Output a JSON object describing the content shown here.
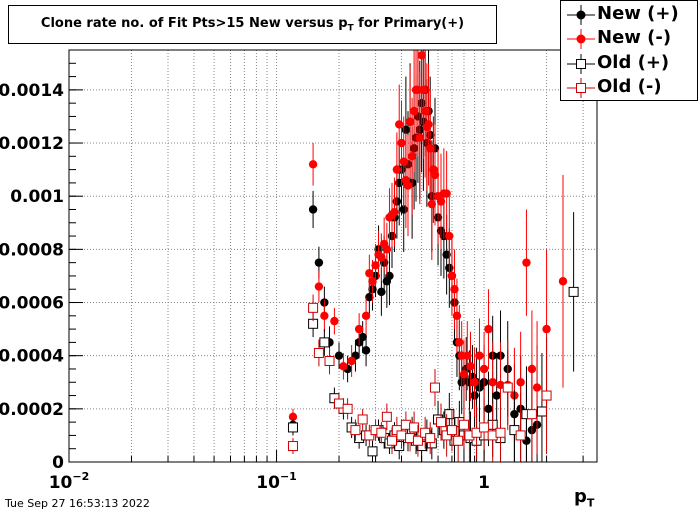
{
  "title": {
    "main": "Clone rate no. of Fit Pts>15 New versus p",
    "sub": "T",
    "tail": " for Primary(+)"
  },
  "timestamp": "Tue Sep 27 16:53:13 2022",
  "legend": [
    {
      "label": "New (+)",
      "color": "#000000",
      "marker": "filled-circle"
    },
    {
      "label": "New (-)",
      "color": "#ff0000",
      "marker": "filled-circle"
    },
    {
      "label": "Old (+)",
      "color": "#000000",
      "marker": "open-square"
    },
    {
      "label": "Old (-)",
      "color": "#cc0000",
      "marker": "open-square"
    }
  ],
  "xaxis": {
    "title_main": "p",
    "title_sub": "T"
  },
  "chart_data": {
    "type": "scatter",
    "x_scale": "log",
    "xlim": [
      0.01,
      3.5
    ],
    "ylim": [
      0,
      0.00155
    ],
    "grid": true,
    "x_ticks": [
      {
        "value": 0.01,
        "base": "10",
        "exp": "−2"
      },
      {
        "value": 0.1,
        "base": "10",
        "exp": "−1"
      },
      {
        "value": 1,
        "base": "1",
        "exp": ""
      }
    ],
    "y_ticks": [
      {
        "value": 0,
        "label": "0"
      },
      {
        "value": 0.0002,
        "label": "0.0002"
      },
      {
        "value": 0.0004,
        "label": "0.0004"
      },
      {
        "value": 0.0006,
        "label": "0.0006"
      },
      {
        "value": 0.0008,
        "label": "0.0008"
      },
      {
        "value": 0.001,
        "label": "0.001"
      },
      {
        "value": 0.0012,
        "label": "0.0012"
      },
      {
        "value": 0.0014,
        "label": "0.0014"
      }
    ],
    "series": [
      {
        "name": "New (+)",
        "color": "#000000",
        "marker": "filled-circle",
        "points": [
          [
            0.15,
            0.00095,
            7e-05
          ],
          [
            0.16,
            0.00075,
            6e-05
          ],
          [
            0.17,
            0.0006,
            6e-05
          ],
          [
            0.18,
            0.00045,
            6e-05
          ],
          [
            0.2,
            0.0004,
            5e-05
          ],
          [
            0.22,
            0.00035,
            5e-05
          ],
          [
            0.24,
            0.0004,
            6e-05
          ],
          [
            0.25,
            0.00045,
            6e-05
          ],
          [
            0.26,
            0.00047,
            6e-05
          ],
          [
            0.27,
            0.00042,
            6e-05
          ],
          [
            0.28,
            0.00062,
            7e-05
          ],
          [
            0.29,
            0.00065,
            8e-05
          ],
          [
            0.3,
            0.0007,
            8e-05
          ],
          [
            0.31,
            0.0008,
            9e-05
          ],
          [
            0.32,
            0.00064,
            9e-05
          ],
          [
            0.33,
            0.00075,
            0.0001
          ],
          [
            0.34,
            0.00068,
            0.0001
          ],
          [
            0.35,
            0.0007,
            0.00011
          ],
          [
            0.36,
            0.00085,
            0.00012
          ],
          [
            0.37,
            0.00092,
            0.00013
          ],
          [
            0.38,
            0.00098,
            0.00014
          ],
          [
            0.39,
            0.00105,
            0.00016
          ],
          [
            0.4,
            0.0011,
            0.00017
          ],
          [
            0.41,
            0.00095,
            0.00016
          ],
          [
            0.42,
            0.00125,
            0.0002
          ],
          [
            0.43,
            0.00112,
            0.0002
          ],
          [
            0.44,
            0.00128,
            0.00022
          ],
          [
            0.45,
            0.00105,
            0.00021
          ],
          [
            0.46,
            0.00118,
            0.00023
          ],
          [
            0.47,
            0.00122,
            0.00024
          ],
          [
            0.48,
            0.0013,
            0.00025
          ],
          [
            0.49,
            0.00125,
            0.00026
          ],
          [
            0.5,
            0.00135,
            0.00026
          ],
          [
            0.51,
            0.00128,
            0.00026
          ],
          [
            0.52,
            0.0014,
            0.00025
          ],
          [
            0.53,
            0.0012,
            0.00024
          ],
          [
            0.54,
            0.00132,
            0.00023
          ],
          [
            0.55,
            0.00123,
            0.00022
          ],
          [
            0.56,
            0.001,
            0.00021
          ],
          [
            0.57,
            0.0011,
            0.0002
          ],
          [
            0.58,
            0.00118,
            0.00019
          ],
          [
            0.6,
            0.00092,
            0.00018
          ],
          [
            0.62,
            0.00087,
            0.00017
          ],
          [
            0.64,
            0.00085,
            0.00016
          ],
          [
            0.66,
            0.00078,
            0.00015
          ],
          [
            0.68,
            0.00073,
            0.00015
          ],
          [
            0.7,
            0.0007,
            0.00014
          ],
          [
            0.72,
            0.0006,
            0.00014
          ],
          [
            0.74,
            0.00045,
            0.00013
          ],
          [
            0.76,
            0.0004,
            0.00013
          ],
          [
            0.78,
            0.0003,
            0.00012
          ],
          [
            0.8,
            0.00032,
            0.00012
          ],
          [
            0.82,
            0.00035,
            0.00012
          ],
          [
            0.85,
            0.0003,
            0.00012
          ],
          [
            0.88,
            0.00032,
            0.00012
          ],
          [
            0.9,
            0.00025,
            0.00012
          ],
          [
            0.92,
            0.0003,
            0.00013
          ],
          [
            0.95,
            0.00028,
            0.00013
          ],
          [
            1.0,
            0.0003,
            0.00014
          ],
          [
            1.05,
            0.0002,
            0.00014
          ],
          [
            1.1,
            0.0004,
            0.00015
          ],
          [
            1.15,
            0.00025,
            0.00016
          ],
          [
            1.2,
            0.0004,
            0.00017
          ],
          [
            1.3,
            0.00035,
            0.00018
          ],
          [
            1.4,
            0.00018,
            0.00019
          ],
          [
            1.5,
            0.0002,
            0.0002
          ],
          [
            1.6,
            8e-05,
            0.00022
          ],
          [
            1.7,
            0.00012,
            0.00025
          ],
          [
            1.8,
            0.00014,
            0.0003
          ],
          [
            0.12,
            0.00014,
            3e-05
          ]
        ]
      },
      {
        "name": "New (-)",
        "color": "#ff0000",
        "marker": "filled-circle",
        "points": [
          [
            0.15,
            0.00112,
            8e-05
          ],
          [
            0.16,
            0.00066,
            6e-05
          ],
          [
            0.17,
            0.00055,
            6e-05
          ],
          [
            0.19,
            0.00053,
            5e-05
          ],
          [
            0.21,
            0.00036,
            5e-05
          ],
          [
            0.23,
            0.00038,
            6e-05
          ],
          [
            0.25,
            0.0005,
            6e-05
          ],
          [
            0.27,
            0.00055,
            7e-05
          ],
          [
            0.28,
            0.00071,
            7e-05
          ],
          [
            0.29,
            0.00068,
            8e-05
          ],
          [
            0.3,
            0.00074,
            8e-05
          ],
          [
            0.31,
            0.00078,
            9e-05
          ],
          [
            0.32,
            0.00077,
            9e-05
          ],
          [
            0.33,
            0.00082,
            0.0001
          ],
          [
            0.34,
            0.0008,
            0.0001
          ],
          [
            0.35,
            0.00092,
            0.00011
          ],
          [
            0.36,
            0.00093,
            0.00012
          ],
          [
            0.37,
            0.00094,
            0.00013
          ],
          [
            0.38,
            0.0011,
            0.00014
          ],
          [
            0.39,
            0.00127,
            0.00015
          ],
          [
            0.4,
            0.0012,
            0.00016
          ],
          [
            0.41,
            0.00113,
            0.00017
          ],
          [
            0.42,
            0.00106,
            0.00018
          ],
          [
            0.43,
            0.00104,
            0.00019
          ],
          [
            0.44,
            0.00128,
            0.00021
          ],
          [
            0.45,
            0.00115,
            0.00022
          ],
          [
            0.46,
            0.00132,
            0.00023
          ],
          [
            0.47,
            0.0014,
            0.00024
          ],
          [
            0.48,
            0.0014,
            0.00025
          ],
          [
            0.49,
            0.00122,
            0.00025
          ],
          [
            0.5,
            0.00153,
            0.00026
          ],
          [
            0.51,
            0.0014,
            0.00026
          ],
          [
            0.52,
            0.00132,
            0.00025
          ],
          [
            0.53,
            0.00126,
            0.00024
          ],
          [
            0.54,
            0.00127,
            0.00023
          ],
          [
            0.55,
            0.00118,
            0.00022
          ],
          [
            0.56,
            0.00097,
            0.00021
          ],
          [
            0.57,
            0.0011,
            0.0002
          ],
          [
            0.58,
            0.00108,
            0.00019
          ],
          [
            0.6,
            0.001,
            0.00018
          ],
          [
            0.62,
            0.00098,
            0.00018
          ],
          [
            0.64,
            0.00101,
            0.00017
          ],
          [
            0.66,
            0.00101,
            0.00016
          ],
          [
            0.68,
            0.00085,
            0.00016
          ],
          [
            0.7,
            0.0007,
            0.00015
          ],
          [
            0.72,
            0.00065,
            0.00015
          ],
          [
            0.74,
            0.00055,
            0.00014
          ],
          [
            0.76,
            0.00045,
            0.00014
          ],
          [
            0.78,
            0.0004,
            0.00013
          ],
          [
            0.8,
            0.00033,
            0.00013
          ],
          [
            0.83,
            0.0004,
            0.00013
          ],
          [
            0.86,
            0.00036,
            0.00013
          ],
          [
            0.9,
            0.0003,
            0.00013
          ],
          [
            0.95,
            0.0004,
            0.00014
          ],
          [
            1.0,
            0.00035,
            0.00014
          ],
          [
            1.05,
            0.0005,
            0.00015
          ],
          [
            1.1,
            0.0003,
            0.00015
          ],
          [
            1.2,
            0.00029,
            0.00016
          ],
          [
            1.3,
            0.00029,
            0.00017
          ],
          [
            1.4,
            0.00025,
            0.00018
          ],
          [
            1.5,
            0.0003,
            0.00019
          ],
          [
            1.6,
            0.00075,
            0.0002
          ],
          [
            1.7,
            0.00035,
            0.00022
          ],
          [
            1.8,
            0.00028,
            0.00025
          ],
          [
            2.0,
            0.0005,
            0.0003
          ],
          [
            2.4,
            0.00068,
            0.0004
          ],
          [
            0.12,
            0.00017,
            3e-05
          ]
        ]
      },
      {
        "name": "Old (+)",
        "color": "#000000",
        "marker": "open-square",
        "points": [
          [
            0.12,
            0.00013,
            3e-05
          ],
          [
            0.15,
            0.00052,
            5e-05
          ],
          [
            0.17,
            0.00045,
            5e-05
          ],
          [
            0.19,
            0.00024,
            4e-05
          ],
          [
            0.21,
            0.0002,
            4e-05
          ],
          [
            0.23,
            0.00013,
            4e-05
          ],
          [
            0.25,
            9e-05,
            4e-05
          ],
          [
            0.27,
            0.0001,
            4e-05
          ],
          [
            0.29,
            4e-05,
            4e-05
          ],
          [
            0.31,
            0.00012,
            4e-05
          ],
          [
            0.33,
            9e-05,
            4e-05
          ],
          [
            0.35,
            7e-05,
            4e-05
          ],
          [
            0.37,
            0.0001,
            5e-05
          ],
          [
            0.39,
            6e-05,
            5e-05
          ],
          [
            0.41,
            0.00011,
            5e-05
          ],
          [
            0.43,
            9e-05,
            5e-05
          ],
          [
            0.45,
            0.00012,
            5e-05
          ],
          [
            0.47,
            8e-05,
            5e-05
          ],
          [
            0.5,
            6e-05,
            6e-05
          ],
          [
            0.53,
            0.0001,
            6e-05
          ],
          [
            0.56,
            7e-05,
            6e-05
          ],
          [
            0.6,
            0.00016,
            7e-05
          ],
          [
            0.64,
            0.00012,
            7e-05
          ],
          [
            0.68,
            0.00018,
            8e-05
          ],
          [
            0.72,
            8e-05,
            8e-05
          ],
          [
            0.76,
            0.00015,
            8e-05
          ],
          [
            0.8,
            0.0001,
            9e-05
          ],
          [
            0.86,
            9e-05,
            0.0001
          ],
          [
            0.92,
            8e-05,
            0.0001
          ],
          [
            1.0,
            0.0001,
            0.00011
          ],
          [
            1.1,
            0.00014,
            0.00012
          ],
          [
            1.2,
            9e-05,
            0.00013
          ],
          [
            1.4,
            0.00012,
            0.00015
          ],
          [
            1.6,
            0.00018,
            0.00018
          ],
          [
            1.9,
            0.00019,
            0.00022
          ],
          [
            2.7,
            0.00064,
            0.0003
          ]
        ]
      },
      {
        "name": "Old (-)",
        "color": "#cc0000",
        "marker": "open-square",
        "points": [
          [
            0.12,
            6e-05,
            3e-05
          ],
          [
            0.15,
            0.00058,
            5e-05
          ],
          [
            0.16,
            0.00041,
            5e-05
          ],
          [
            0.18,
            0.00038,
            5e-05
          ],
          [
            0.2,
            0.00022,
            4e-05
          ],
          [
            0.22,
            0.0002,
            4e-05
          ],
          [
            0.24,
            0.00012,
            4e-05
          ],
          [
            0.26,
            0.00016,
            4e-05
          ],
          [
            0.28,
            0.0001,
            4e-05
          ],
          [
            0.3,
            0.00012,
            4e-05
          ],
          [
            0.32,
            0.00011,
            4e-05
          ],
          [
            0.34,
            0.00017,
            5e-05
          ],
          [
            0.36,
            8e-05,
            5e-05
          ],
          [
            0.38,
            0.00012,
            5e-05
          ],
          [
            0.4,
            0.0001,
            5e-05
          ],
          [
            0.42,
            0.00014,
            5e-05
          ],
          [
            0.44,
            9e-05,
            5e-05
          ],
          [
            0.46,
            0.00013,
            6e-05
          ],
          [
            0.48,
            8e-05,
            6e-05
          ],
          [
            0.52,
            0.00011,
            6e-05
          ],
          [
            0.55,
            9e-05,
            6e-05
          ],
          [
            0.58,
            0.00028,
            7e-05
          ],
          [
            0.62,
            0.00015,
            7e-05
          ],
          [
            0.66,
            0.0001,
            8e-05
          ],
          [
            0.7,
            0.00012,
            8e-05
          ],
          [
            0.75,
            8e-05,
            9e-05
          ],
          [
            0.8,
            0.00014,
            9e-05
          ],
          [
            0.85,
            0.0001,
            0.0001
          ],
          [
            0.92,
            0.00011,
            0.0001
          ],
          [
            1.0,
            0.00013,
            0.00011
          ],
          [
            1.1,
            0.0001,
            0.00012
          ],
          [
            1.2,
            0.00011,
            0.00013
          ],
          [
            1.3,
            0.00028,
            0.00014
          ],
          [
            1.5,
            0.0001,
            0.00016
          ],
          [
            1.7,
            0.00018,
            0.00018
          ],
          [
            2.0,
            0.00025,
            0.00022
          ]
        ]
      }
    ]
  }
}
